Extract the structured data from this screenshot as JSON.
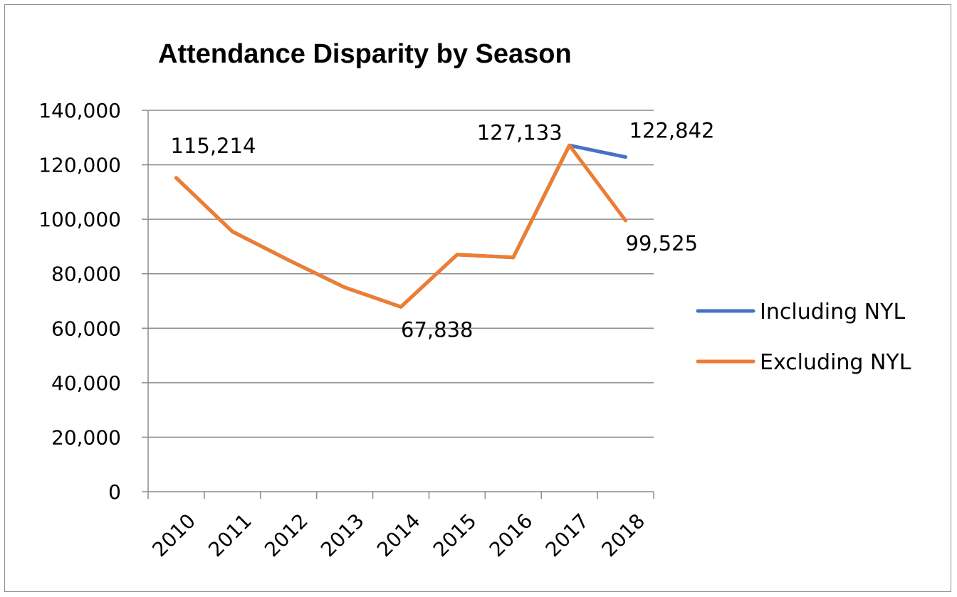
{
  "chart_data": {
    "type": "line",
    "title": "Attendance Disparity by Season",
    "xlabel": "",
    "ylabel": "",
    "categories": [
      "2010",
      "2011",
      "2012",
      "2013",
      "2014",
      "2015",
      "2016",
      "2017",
      "2018"
    ],
    "ylim": [
      0,
      140000
    ],
    "yticks": [
      "0",
      "20,000",
      "40,000",
      "60,000",
      "80,000",
      "100,000",
      "120,000",
      "140,000"
    ],
    "ytick_values": [
      0,
      20000,
      40000,
      60000,
      80000,
      100000,
      120000,
      140000
    ],
    "grid": true,
    "legend": "right",
    "series": [
      {
        "name": "Including NYL",
        "color": "#4472C4",
        "values": [
          115214,
          95500,
          85000,
          75000,
          67838,
          87000,
          86000,
          127133,
          122842
        ]
      },
      {
        "name": "Excluding NYL",
        "color": "#ED7D31",
        "values": [
          115214,
          95500,
          85000,
          75000,
          67838,
          87000,
          86000,
          127133,
          99525
        ]
      }
    ],
    "data_labels": [
      {
        "text": "115,214",
        "series": 1,
        "index": 0,
        "position": "above"
      },
      {
        "text": "67,838",
        "series": 1,
        "index": 4,
        "position": "below-right"
      },
      {
        "text": "127,133",
        "series": 1,
        "index": 7,
        "position": "left"
      },
      {
        "text": "122,842",
        "series": 0,
        "index": 8,
        "position": "above"
      },
      {
        "text": "99,525",
        "series": 1,
        "index": 8,
        "position": "below-right"
      }
    ]
  }
}
